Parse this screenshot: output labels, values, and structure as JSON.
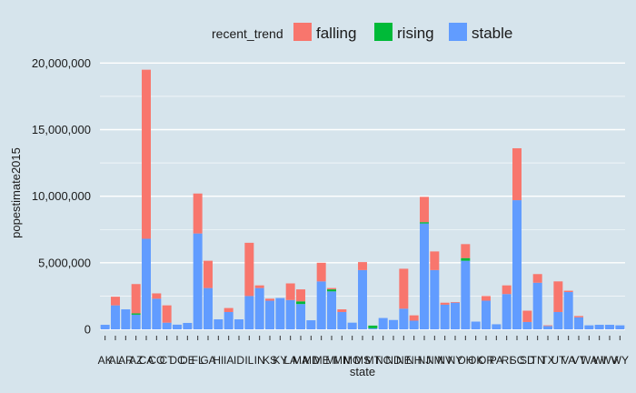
{
  "chart_data": {
    "type": "bar",
    "stacked": true,
    "xlabel": "state",
    "ylabel": "popestimate2015",
    "ylim": [
      0,
      20500000
    ],
    "yticks": [
      0,
      5000000,
      10000000,
      15000000,
      20000000
    ],
    "ytick_labels": [
      "0",
      "5,000,000",
      "10,000,000",
      "15,000,000",
      "20,000,000"
    ],
    "grid": true,
    "legend": {
      "title": "recent_trend",
      "position": "top"
    },
    "categories": [
      "AK",
      "AL",
      "AR",
      "AZ",
      "CA",
      "CO",
      "CT",
      "DC",
      "DE",
      "FL",
      "GA",
      "HI",
      "IA",
      "ID",
      "IL",
      "IN",
      "KS",
      "KY",
      "LA",
      "MA",
      "MD",
      "ME",
      "MI",
      "MN",
      "MO",
      "MS",
      "MT",
      "NC",
      "ND",
      "NE",
      "NH",
      "NJ",
      "NM",
      "NV",
      "NY",
      "OH",
      "OK",
      "OR",
      "PA",
      "RI",
      "SC",
      "SD",
      "TN",
      "TX",
      "UT",
      "VA",
      "VT",
      "WA",
      "WI",
      "WV",
      "WY"
    ],
    "series": [
      {
        "name": "stable",
        "color": "#619cff",
        "values": [
          340000,
          1800000,
          1500000,
          1100000,
          6800000,
          2300000,
          500000,
          350000,
          480000,
          7200000,
          3100000,
          750000,
          1300000,
          750000,
          2500000,
          3100000,
          2150000,
          2350000,
          2200000,
          1900000,
          680000,
          3600000,
          2850000,
          1300000,
          500000,
          4450000,
          80000,
          850000,
          700000,
          1550000,
          650000,
          7950000,
          4450000,
          1850000,
          2000000,
          5150000,
          580000,
          2150000,
          380000,
          2650000,
          9700000,
          550000,
          3500000,
          250000,
          1300000,
          2800000,
          900000,
          300000,
          340000,
          340000,
          300000
        ]
      },
      {
        "name": "rising",
        "color": "#00ba38",
        "values": [
          0,
          0,
          0,
          100000,
          0,
          0,
          0,
          0,
          0,
          0,
          0,
          0,
          0,
          0,
          0,
          0,
          0,
          0,
          0,
          200000,
          0,
          0,
          150000,
          0,
          0,
          0,
          200000,
          0,
          0,
          0,
          0,
          100000,
          0,
          0,
          0,
          200000,
          0,
          0,
          0,
          0,
          0,
          0,
          0,
          0,
          0,
          0,
          0,
          0,
          0,
          0,
          0
        ]
      },
      {
        "name": "falling",
        "color": "#f8766d",
        "values": [
          0,
          650000,
          0,
          2200000,
          12700000,
          400000,
          1300000,
          0,
          0,
          3000000,
          2050000,
          0,
          300000,
          0,
          4000000,
          200000,
          150000,
          0,
          1250000,
          900000,
          0,
          1400000,
          100000,
          200000,
          0,
          600000,
          0,
          0,
          0,
          3000000,
          400000,
          1900000,
          1400000,
          150000,
          50000,
          1050000,
          0,
          350000,
          0,
          650000,
          3900000,
          850000,
          650000,
          50000,
          2300000,
          100000,
          100000,
          0,
          0,
          0,
          0
        ]
      }
    ]
  }
}
